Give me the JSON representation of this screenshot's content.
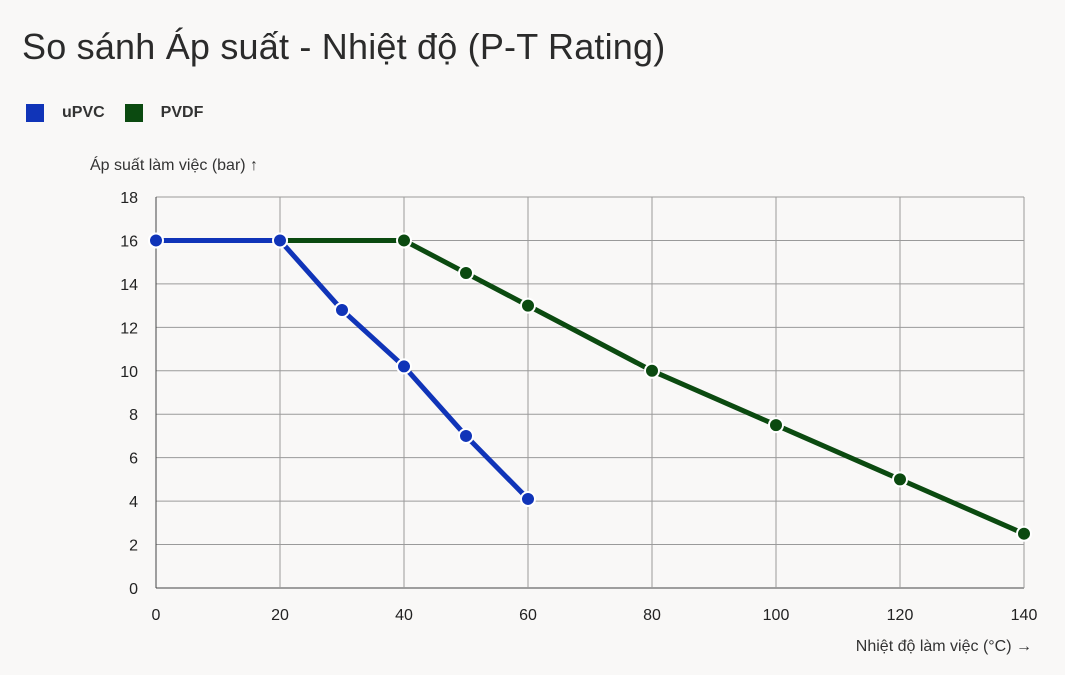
{
  "page": {
    "title": "So sánh Áp suất - Nhiệt độ (P-T Rating)"
  },
  "chart_data": {
    "type": "line",
    "title": "So sánh Áp suất - Nhiệt độ (P-T Rating)",
    "xlabel": "Nhiệt độ làm việc (°C) →",
    "ylabel": "Áp suất làm việc (bar) ↑",
    "xlim": [
      0,
      140
    ],
    "ylim": [
      0,
      18
    ],
    "x_ticks": [
      0,
      20,
      40,
      60,
      80,
      100,
      120,
      140
    ],
    "y_ticks": [
      0,
      2,
      4,
      6,
      8,
      10,
      12,
      14,
      16,
      18
    ],
    "grid": true,
    "legend_position": "top-left",
    "series": [
      {
        "name": "uPVC",
        "color": "#1034b8",
        "points": [
          [
            0,
            16
          ],
          [
            20,
            16
          ],
          [
            30,
            12.8
          ],
          [
            40,
            10.2
          ],
          [
            50,
            7
          ],
          [
            60,
            4.1
          ]
        ]
      },
      {
        "name": "PVDF",
        "color": "#0b4a10",
        "points": [
          [
            0,
            16
          ],
          [
            20,
            16
          ],
          [
            40,
            16
          ],
          [
            50,
            14.5
          ],
          [
            60,
            13
          ],
          [
            80,
            10
          ],
          [
            100,
            7.5
          ],
          [
            120,
            5
          ],
          [
            140,
            2.5
          ]
        ]
      }
    ]
  }
}
